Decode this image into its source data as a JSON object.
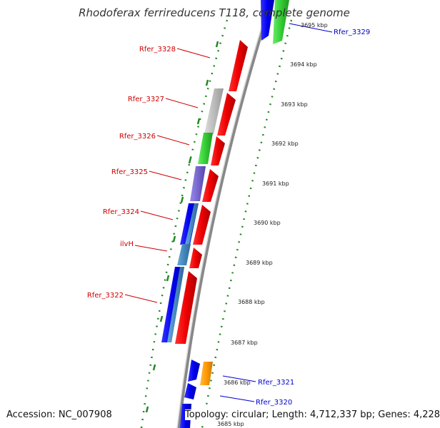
{
  "title": "Rhodoferax ferrireducens T118, complete genome",
  "footer": {
    "accession": "Accession: NC_007908",
    "topology": "Topology: circular; Length: 4,712,337 bp; Genes: 4,228"
  },
  "ticks": [
    {
      "label": "3695 kbp"
    },
    {
      "label": "3694 kbp"
    },
    {
      "label": "3693 kbp"
    },
    {
      "label": "3692 kbp"
    },
    {
      "label": "3691 kbp"
    },
    {
      "label": "3690 kbp"
    },
    {
      "label": "3689 kbp"
    },
    {
      "label": "3688 kbp"
    },
    {
      "label": "3687 kbp"
    },
    {
      "label": "3686 kbp"
    },
    {
      "label": "3685 kbp"
    }
  ],
  "gene_labels": [
    {
      "name": "Rfer_3329",
      "color": "#0000cc"
    },
    {
      "name": "Rfer_3328",
      "color": "#cc0000"
    },
    {
      "name": "Rfer_3327",
      "color": "#cc0000"
    },
    {
      "name": "Rfer_3326",
      "color": "#cc0000"
    },
    {
      "name": "Rfer_3325",
      "color": "#cc0000"
    },
    {
      "name": "Rfer_3324",
      "color": "#cc0000"
    },
    {
      "name": "ilvH",
      "color": "#cc0000"
    },
    {
      "name": "Rfer_3322",
      "color": "#cc0000"
    },
    {
      "name": "Rfer_3321",
      "color": "#0000cc"
    },
    {
      "name": "Rfer_3320",
      "color": "#0000cc"
    }
  ],
  "colors": {
    "forward_cds": "#ff0000",
    "reverse_cds": "#0000ff",
    "green": "#33cc33",
    "gray": "#bbbbbb",
    "purple": "#7766cc",
    "steelblue": "#4488bb",
    "orange": "#ff9900",
    "dotted_ring": "#228822",
    "backbone": "#888888"
  }
}
